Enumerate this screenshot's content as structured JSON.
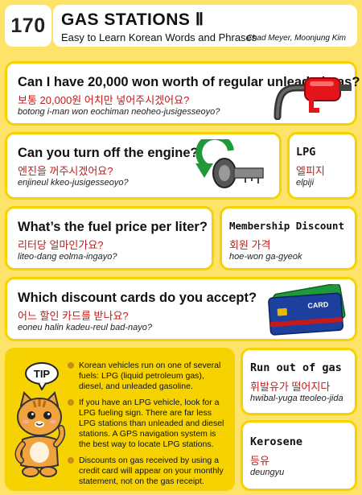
{
  "header": {
    "number": "170",
    "title": "GAS STATIONS Ⅱ",
    "subtitle": "Easy to Learn Korean Words and Phrases",
    "authors": "Chad Meyer,  Moonjung Kim"
  },
  "phrases": [
    {
      "english": "Can I have 20,000 won worth of regular unleaded gas?",
      "korean": "보통 20,000원 어치만 넣어주시겠어요?",
      "romanization": "botong i-man won eochiman neoheo-jusigesseoyo?",
      "icon": "gas-pump-nozzle-icon"
    },
    {
      "english": "Can you turn off the engine?",
      "korean": "엔진을 꺼주시겠어요?",
      "romanization": "enjineul kkeo-jusigesseoyo?",
      "icon": "car-key-turn-icon"
    },
    {
      "english": "What’s the fuel price per liter?",
      "korean": "리터당 얼마인가요?",
      "romanization": "liteo-dang eolma-ingayo?"
    },
    {
      "english": "Which discount cards do you accept?",
      "korean": "어느 할인 카드를 받나요?",
      "romanization": "eoneu halin kadeu-reul bad-nayo?",
      "icon": "credit-cards-icon",
      "card_text": "CARD"
    }
  ],
  "vocab": [
    {
      "english": "LPG",
      "korean": "엘피지",
      "romanization": "elpiji"
    },
    {
      "english": "Membership Discount",
      "korean": "회원 가격",
      "romanization": "hoe-won ga-gyeok"
    },
    {
      "english": "Run out of gas",
      "korean": "휘발유가 떨어지다",
      "romanization": "hwibal-yuga tteoleo-jida"
    },
    {
      "english": "Kerosene",
      "korean": "등유",
      "romanization": "deungyu"
    }
  ],
  "tip": {
    "label": "TIP",
    "items": [
      "Korean vehicles run on one of several fuels: LPG (liquid petroleum gas), diesel, and unleaded gasoline.",
      "If you have an LPG vehicle, look for a LPG fueling sign.  There are far less LPG stations than unleaded and diesel stations.  A GPS navigation system is the best way to locate LPG stations.",
      "Discounts on gas received by using a credit card will appear on your monthly statement, not on the gas receipt."
    ]
  },
  "colors": {
    "background": "#fde36a",
    "border": "#f6d300",
    "korean_text": "#c41a1a",
    "nozzle": "#e4141b"
  }
}
